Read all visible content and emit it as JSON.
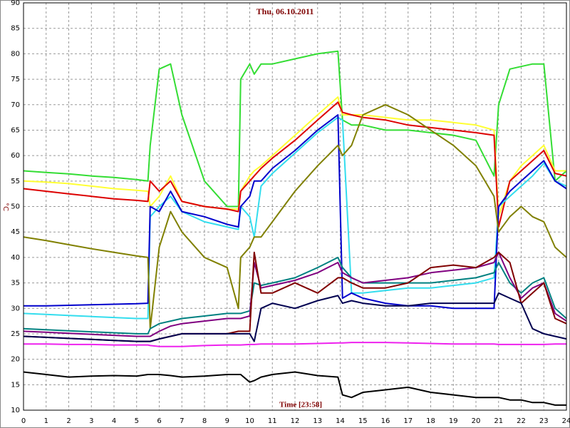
{
  "chart_data": {
    "type": "line",
    "title": "Thu, 06.10.2011",
    "x_label": "Time [23:58]",
    "y_label": "°C",
    "x": [
      0,
      1,
      2,
      3,
      4,
      5,
      5.5,
      5.6,
      6,
      6.5,
      7,
      8,
      9,
      9.5,
      9.6,
      10,
      10.2,
      10.5,
      11,
      12,
      13,
      13.9,
      14.1,
      14.5,
      15,
      16,
      17,
      18,
      19,
      20,
      20.8,
      21,
      21.5,
      22,
      22.5,
      23,
      23.5,
      24
    ],
    "xlim": [
      0,
      24
    ],
    "xticks": [
      0,
      1,
      2,
      3,
      4,
      5,
      6,
      7,
      8,
      9,
      10,
      11,
      12,
      13,
      14,
      15,
      16,
      17,
      18,
      19,
      20,
      21,
      22,
      23,
      24
    ],
    "ylim": [
      10,
      90
    ],
    "yticks": [
      10,
      15,
      20,
      25,
      30,
      35,
      40,
      45,
      50,
      55,
      60,
      65,
      70,
      75,
      80,
      85,
      90
    ],
    "grid": true,
    "series": [
      {
        "color": "#33dd33",
        "values": [
          57,
          56.7,
          56.4,
          56,
          55.7,
          55.3,
          55,
          62,
          77,
          78,
          68,
          55,
          50,
          50,
          75,
          78,
          76,
          78,
          78,
          79,
          80,
          80.5,
          67,
          66,
          66,
          65,
          65,
          64.5,
          64,
          63,
          56,
          70,
          77,
          77.5,
          78,
          78,
          55,
          57
        ]
      },
      {
        "color": "#ffff33",
        "values": [
          55,
          54.8,
          54.5,
          54,
          53.5,
          53.2,
          53,
          50,
          52,
          56,
          51,
          50,
          49.5,
          49.5,
          53,
          56,
          57,
          58,
          60,
          64,
          68,
          71.5,
          68,
          68,
          68,
          67.5,
          67,
          67,
          66.5,
          66,
          65,
          48,
          55,
          58,
          60,
          62,
          57,
          57
        ]
      },
      {
        "color": "#dd0000",
        "values": [
          53.5,
          53,
          52.5,
          52,
          51.5,
          51.2,
          51,
          55,
          53,
          55,
          51,
          50,
          49.5,
          49,
          53,
          55,
          56,
          57.5,
          59.5,
          63,
          67,
          70.5,
          68.5,
          68,
          67.5,
          67,
          66,
          65.5,
          65,
          64.5,
          64,
          46,
          55,
          57,
          59,
          61,
          56.5,
          56
        ]
      },
      {
        "color": "#33ddee",
        "values": [
          29,
          28.8,
          28.6,
          28.4,
          28.2,
          28,
          28,
          48,
          50,
          52,
          49,
          47,
          46,
          45.5,
          50,
          48,
          44,
          54,
          56.5,
          60.5,
          64.5,
          67.5,
          67,
          33,
          33,
          33.5,
          34,
          34,
          34.5,
          35,
          36,
          50,
          52,
          54,
          56,
          58.5,
          55,
          54
        ]
      },
      {
        "color": "#0000cc",
        "values": [
          30.5,
          30.5,
          30.6,
          30.7,
          30.8,
          30.9,
          31,
          50,
          49,
          53,
          49,
          48,
          46.5,
          46,
          50,
          52,
          55,
          55,
          57.5,
          61,
          65,
          68,
          32,
          33,
          32,
          31,
          30.5,
          30.5,
          30,
          30,
          30,
          50,
          53,
          55,
          57,
          59,
          55,
          53.5
        ]
      },
      {
        "color": "#808000",
        "values": [
          44,
          43.3,
          42.5,
          41.7,
          41,
          40.3,
          40,
          26,
          42,
          49,
          45,
          40,
          38,
          30,
          40,
          42,
          44,
          44,
          47,
          53,
          58,
          62,
          60,
          62,
          68,
          70,
          68,
          65,
          62,
          58,
          52,
          45,
          48,
          50,
          48,
          47,
          42,
          40
        ]
      },
      {
        "color": "#008080",
        "values": [
          26,
          25.8,
          25.6,
          25.4,
          25.2,
          25,
          25,
          26,
          27,
          27.5,
          28,
          28.5,
          29,
          29,
          29,
          29.5,
          35,
          34.5,
          35,
          36,
          38,
          40,
          38,
          36,
          35,
          35,
          35,
          35,
          35.5,
          36,
          37,
          39,
          35,
          33,
          35,
          36,
          30,
          28
        ]
      },
      {
        "color": "#800080",
        "values": [
          25.5,
          25.3,
          25.1,
          24.9,
          24.7,
          24.5,
          24.5,
          24.5,
          25.5,
          26.5,
          27,
          27.5,
          28,
          28,
          28,
          28.5,
          39,
          34,
          34.5,
          35.5,
          37,
          39,
          37,
          36,
          35,
          35.5,
          36,
          37,
          37.5,
          38,
          39,
          41,
          36,
          32,
          34,
          35,
          29,
          27.5
        ]
      },
      {
        "color": "#800000",
        "values": [
          24.5,
          24.3,
          24.1,
          23.9,
          23.7,
          23.5,
          23.5,
          23.5,
          24,
          24.5,
          25,
          25,
          25,
          25.5,
          25.5,
          25.5,
          41,
          33,
          33,
          35,
          33,
          36,
          36,
          35,
          34,
          34,
          35,
          38,
          38.5,
          38,
          40,
          41,
          39,
          31,
          33,
          35,
          28,
          27
        ]
      },
      {
        "color": "#000050",
        "values": [
          24.5,
          24.3,
          24.1,
          23.9,
          23.7,
          23.5,
          23.5,
          23.5,
          24,
          24.5,
          25,
          25,
          25,
          25,
          25,
          25,
          23.5,
          30,
          31,
          30,
          31.5,
          32.5,
          31,
          31.5,
          31,
          30.5,
          30.5,
          31,
          31,
          31,
          31,
          33,
          32,
          31,
          26,
          25,
          24.5,
          24
        ]
      },
      {
        "color": "#ee22ee",
        "values": [
          23,
          23,
          22.9,
          22.9,
          22.8,
          22.8,
          22.8,
          22.7,
          22.5,
          22.5,
          22.5,
          22.7,
          22.8,
          22.8,
          22.8,
          22.9,
          22.9,
          23,
          23,
          23,
          23.1,
          23.2,
          23.2,
          23.3,
          23.3,
          23.3,
          23.2,
          23.1,
          23,
          23,
          23,
          22.9,
          22.9,
          22.9,
          22.9,
          22.9,
          23,
          23
        ]
      },
      {
        "color": "#000000",
        "values": [
          17.5,
          17,
          16.5,
          16.7,
          16.8,
          16.7,
          17,
          17,
          17,
          16.8,
          16.5,
          16.7,
          17,
          17,
          17,
          15.5,
          15.8,
          16.5,
          17,
          17.5,
          16.8,
          16.5,
          13,
          12.5,
          13.5,
          14,
          14.5,
          13.5,
          13,
          12.5,
          12.5,
          12.5,
          12,
          12,
          11.5,
          11.5,
          11,
          11
        ]
      }
    ]
  }
}
